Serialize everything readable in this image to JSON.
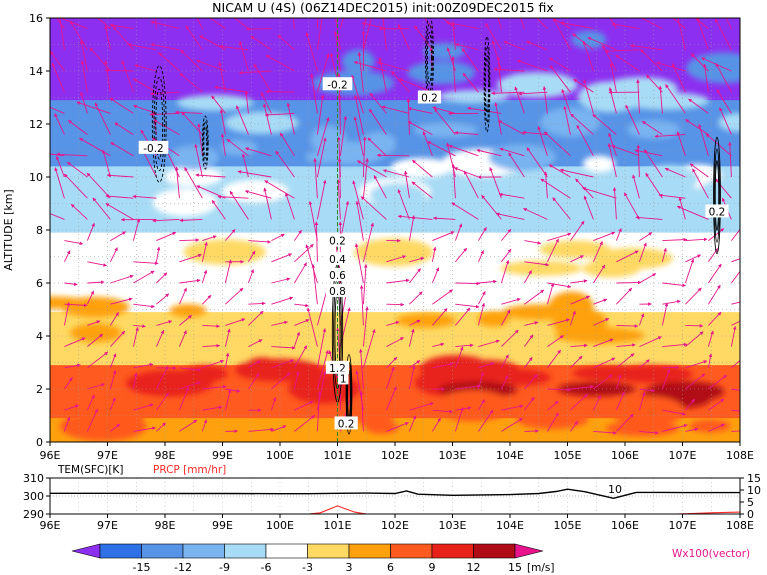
{
  "chart_data": [
    {
      "type": "heatmap",
      "title": "NICAM  U  (4S)  (06Z14DEC2015)  init:00Z09DEC2015  fix",
      "xlabel": "",
      "ylabel": "ALTITUDE  [km]",
      "xlim": [
        96,
        108
      ],
      "ylim": [
        0,
        16
      ],
      "x_ticks": [
        "96E",
        "97E",
        "98E",
        "99E",
        "100E",
        "101E",
        "102E",
        "103E",
        "104E",
        "105E",
        "106E",
        "107E",
        "108E"
      ],
      "y_ticks": [
        "0",
        "2",
        "4",
        "6",
        "8",
        "10",
        "12",
        "14",
        "16"
      ],
      "contour_labels": [
        {
          "text": "-0.2",
          "lon": 97.8,
          "alt": 11.1
        },
        {
          "text": "-0.2",
          "lon": 101.0,
          "alt": 13.5
        },
        {
          "text": "0.2",
          "lon": 102.6,
          "alt": 13.0
        },
        {
          "text": "0.2",
          "lon": 107.6,
          "alt": 8.7
        },
        {
          "text": "0.2",
          "lon": 101.0,
          "alt": 7.6
        },
        {
          "text": "0.4",
          "lon": 101.0,
          "alt": 6.9
        },
        {
          "text": "0.6",
          "lon": 101.0,
          "alt": 6.3
        },
        {
          "text": "0.8",
          "lon": 101.0,
          "alt": 5.7
        },
        {
          "text": "1.2",
          "lon": 101.0,
          "alt": 2.8
        },
        {
          "text": "1",
          "lon": 101.1,
          "alt": 2.4
        },
        {
          "text": "0.2",
          "lon": 101.15,
          "alt": 0.7
        }
      ],
      "layers": [
        {
          "alt_range": [
            0,
            1.5
          ],
          "value": "6 to 9",
          "color": "#ffa10e"
        },
        {
          "alt_range": [
            1.5,
            3.5
          ],
          "value": "9 to 15",
          "color": "#ff5a1f"
        },
        {
          "alt_range": [
            3.5,
            5.5
          ],
          "value": "3 to 9",
          "color": "#ffd963"
        },
        {
          "alt_range": [
            5.5,
            8.5
          ],
          "value": "-3 to 3",
          "color": "#ffffff"
        },
        {
          "alt_range": [
            8.5,
            11
          ],
          "value": "-9 to -3",
          "color": "#a8dbf5"
        },
        {
          "alt_range": [
            11,
            13.5
          ],
          "value": "-12 to -6",
          "color": "#5793e6"
        },
        {
          "alt_range": [
            13.5,
            16
          ],
          "value": "below -15",
          "color": "#8c2ff0"
        }
      ],
      "vector_label": "Wx100(vector)",
      "vector_color": "#e8148c",
      "vertical_line_lon": 101.0
    },
    {
      "type": "line",
      "series_labels": [
        "TEM(SFC)[K]",
        "PRCP [mm/hr]"
      ],
      "left_ticks": [
        "310",
        "300",
        "290"
      ],
      "right_ticks": [
        "15",
        "10",
        "5",
        "0"
      ],
      "ylim_left": [
        290,
        310
      ],
      "ylim_right": [
        0,
        15
      ],
      "x_ticks": [
        "96E",
        "97E",
        "98E",
        "99E",
        "100E",
        "101E",
        "102E",
        "103E",
        "104E",
        "105E",
        "106E",
        "107E",
        "108E"
      ],
      "annotation": "10",
      "series": [
        {
          "name": "TEM(SFC)[K]",
          "color": "#000000",
          "x": [
            96,
            97,
            98,
            99,
            100,
            100.5,
            101,
            101.5,
            102,
            102.2,
            102.4,
            103,
            103.5,
            104,
            104.5,
            104.8,
            105,
            105.3,
            105.8,
            106.2,
            106.7,
            107,
            108
          ],
          "values": [
            301.5,
            301.5,
            301.4,
            301.4,
            301.3,
            301.3,
            301.5,
            301.6,
            301.4,
            302.8,
            301.0,
            300.4,
            300.6,
            300.8,
            301.4,
            302.5,
            303.8,
            302.4,
            298.7,
            302.0,
            302.0,
            301.9,
            301.9
          ]
        },
        {
          "name": "PRCP [mm/hr]",
          "color": "#ff2a2a",
          "x": [
            96,
            100.5,
            100.7,
            100.9,
            101.0,
            101.1,
            101.3,
            101.5,
            106.9,
            107.5,
            108
          ],
          "values": [
            0,
            0,
            0.5,
            2.4,
            3.4,
            2.5,
            0.8,
            0,
            0,
            0.5,
            0.8
          ]
        }
      ]
    }
  ],
  "colorbar": {
    "ticks": [
      "-15",
      "-12",
      "-9",
      "-6",
      "-3",
      "3",
      "6",
      "9",
      "12",
      "15"
    ],
    "unit": "[m/s]",
    "colors": [
      "#8c2ff0",
      "#2e70e5",
      "#5793e6",
      "#79b3f0",
      "#a8dbf5",
      "#ffffff",
      "#ffd963",
      "#ffa10e",
      "#ff5a1f",
      "#e8211a",
      "#b00c18",
      "#e8148c"
    ]
  }
}
